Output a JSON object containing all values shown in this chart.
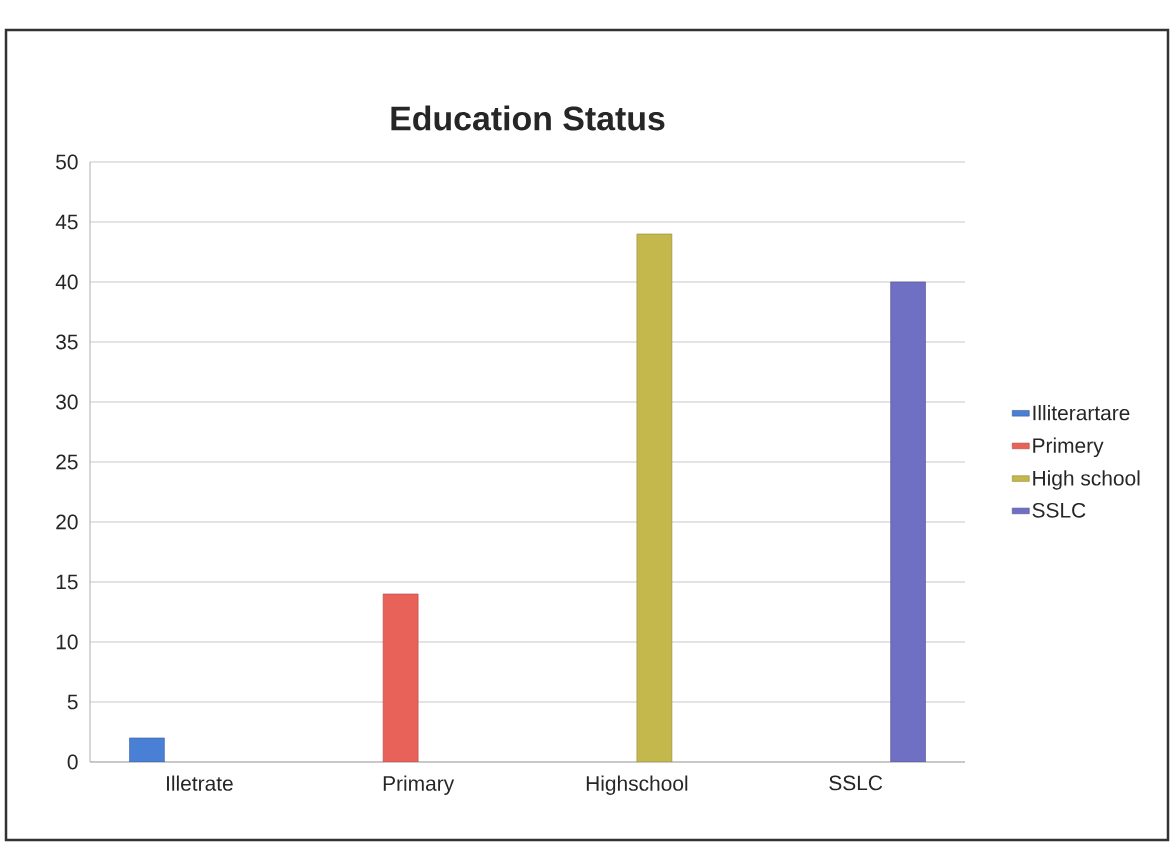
{
  "chart_data": {
    "type": "bar",
    "title": "Education Status",
    "categories": [
      "Illetrate",
      "Primary",
      "Highschool",
      "SSLC"
    ],
    "series": [
      {
        "name": "Illiterartare",
        "color": "#4a7fd6",
        "values": [
          2,
          null,
          null,
          null
        ]
      },
      {
        "name": "Primery",
        "color": "#e8625a",
        "values": [
          null,
          14,
          null,
          null
        ]
      },
      {
        "name": "High school",
        "color": "#c4b84c",
        "values": [
          null,
          null,
          44,
          null
        ]
      },
      {
        "name": "SSLC",
        "color": "#6f6fc4",
        "values": [
          null,
          null,
          null,
          40
        ]
      }
    ],
    "ylim": [
      0,
      50
    ],
    "yticks": [
      0,
      5,
      10,
      15,
      20,
      25,
      30,
      35,
      40,
      45,
      50
    ],
    "grid": "y",
    "legend": "right"
  }
}
